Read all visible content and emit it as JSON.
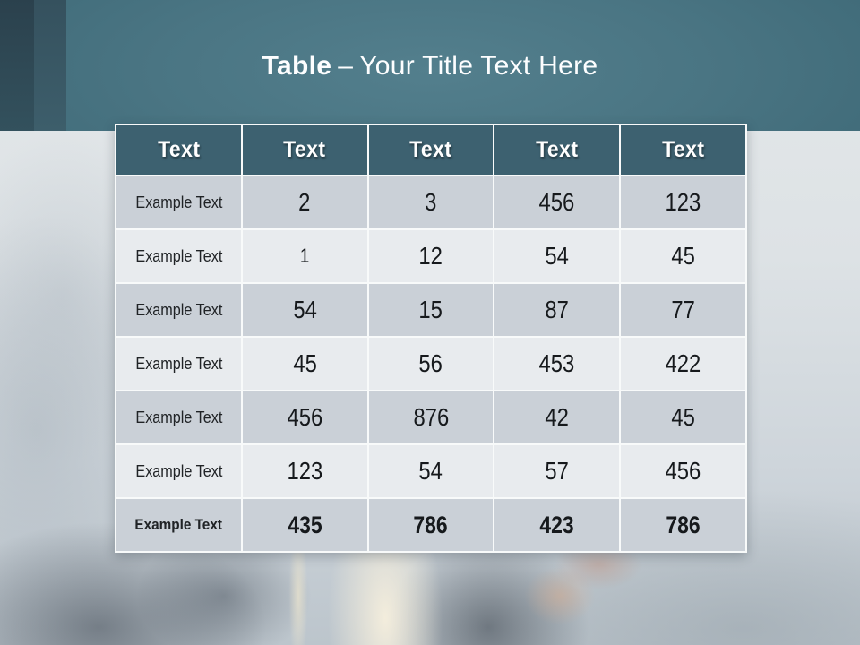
{
  "title": {
    "bold": "Table",
    "dash": "–",
    "rest": "Your Title Text Here"
  },
  "table": {
    "headers": [
      "Text",
      "Text",
      "Text",
      "Text",
      "Text"
    ],
    "rows": [
      {
        "label": "Example Text",
        "values": [
          "2",
          "3",
          "456",
          "123"
        ]
      },
      {
        "label": "Example Text",
        "values": [
          "1",
          "12",
          "54",
          "45"
        ]
      },
      {
        "label": "Example Text",
        "values": [
          "54",
          "15",
          "87",
          "77"
        ]
      },
      {
        "label": "Example Text",
        "values": [
          "45",
          "56",
          "453",
          "422"
        ]
      },
      {
        "label": "Example Text",
        "values": [
          "456",
          "876",
          "42",
          "45"
        ]
      },
      {
        "label": "Example Text",
        "values": [
          "123",
          "54",
          "57",
          "456"
        ]
      },
      {
        "label": "Example Text",
        "values": [
          "435",
          "786",
          "423",
          "786"
        ]
      }
    ]
  },
  "colors": {
    "banner_teal": "#4a7583",
    "accent_bar_dark": "#2e4551",
    "accent_bar_medium": "#395866",
    "header_cell": "#3d6170",
    "row_gray": "#cad0d7",
    "row_light": "#e8ebee",
    "title_text": "#ffffff",
    "cell_text": "#16191c"
  },
  "chart_data": {
    "type": "table",
    "title": "Table – Your Title Text Here",
    "columns": [
      "Text",
      "Text",
      "Text",
      "Text",
      "Text"
    ],
    "rows": [
      [
        "Example Text",
        "2",
        "3",
        "456",
        "123"
      ],
      [
        "Example Text",
        "1",
        "12",
        "54",
        "45"
      ],
      [
        "Example Text",
        "54",
        "15",
        "87",
        "77"
      ],
      [
        "Example Text",
        "45",
        "56",
        "453",
        "422"
      ],
      [
        "Example Text",
        "456",
        "876",
        "42",
        "45"
      ],
      [
        "Example Text",
        "123",
        "54",
        "57",
        "456"
      ],
      [
        "Example Text",
        "435",
        "786",
        "423",
        "786"
      ]
    ]
  }
}
